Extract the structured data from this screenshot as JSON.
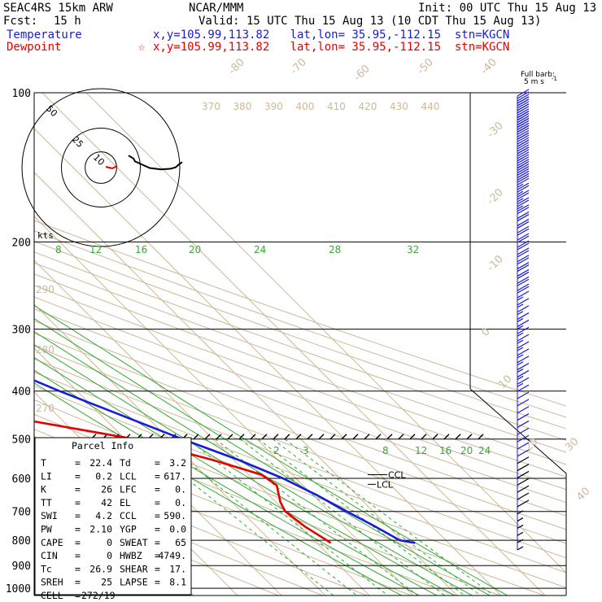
{
  "header": {
    "model": "SEAC4RS 15km ARW",
    "org": "NCAR/MMM",
    "init": "Init: 00 UTC Thu 15 Aug 13",
    "fcst_label": "Fcst:",
    "fcst_value": "15 h",
    "valid": "Valid: 15 UTC Thu 15 Aug 13 (10 CDT Thu 15 Aug 13)",
    "temp_label": "Temperature",
    "temp_info": "x,y=105.99,113.82   lat,lon= 35.95,-112.15  stn=KGCN",
    "dew_label": "Dewpoint",
    "dew_info": "x,y=105.99,113.82   lat,lon= 35.95,-112.15  stn=KGCN",
    "dew_marker": "☆",
    "temp_color": "#1a1adc",
    "dew_color": "#e60000"
  },
  "barb_label_1": "Full barb:",
  "barb_label_2": "5 m s",
  "barb_label_sup": "-1",
  "hodo": {
    "rings": [
      {
        "r": 10,
        "label": "10"
      },
      {
        "r": 25,
        "label": "25"
      },
      {
        "r": 50,
        "label": "50"
      }
    ],
    "units": "kts",
    "red_path": [
      [
        0,
        0
      ],
      [
        -3,
        1.5
      ],
      [
        -7,
        0.5
      ]
    ],
    "black_path": [
      [
        2,
        -8
      ],
      [
        5,
        -12
      ],
      [
        6,
        -16
      ],
      [
        10,
        -20
      ],
      [
        15,
        -25
      ],
      [
        22,
        -27
      ],
      [
        28,
        -26
      ],
      [
        31,
        -24
      ],
      [
        33,
        -20
      ],
      [
        35,
        -17
      ]
    ]
  },
  "chart_data": {
    "type": "line",
    "title": "",
    "xlabel": "",
    "ylabel": "",
    "y_ticks": [
      100,
      200,
      300,
      400,
      500,
      600,
      700,
      800,
      900,
      1000
    ],
    "isotherm_labels": [
      "-80",
      "-70",
      "-60",
      "-50",
      "-40",
      "-30",
      "-20",
      "-10",
      "0",
      "10",
      "20",
      "30",
      "40"
    ],
    "theta_labels": [
      "370",
      "380",
      "390",
      "400",
      "410",
      "420",
      "430",
      "440"
    ],
    "theta_low_labels": [
      "290",
      "280",
      "270"
    ],
    "mixing_ratio_labels_upper": [
      "8",
      "12",
      "16",
      "20",
      "24",
      "28",
      "32"
    ],
    "mixing_ratio_labels_lower": [
      "2",
      "3",
      "8",
      "12",
      "16",
      "20",
      "24"
    ],
    "ccl_label": "CCL",
    "lcl_label": "LCL",
    "series": [
      {
        "name": "Temperature",
        "color": "#1a1adc",
        "points": [
          [
            100,
            -63
          ],
          [
            110,
            -66
          ],
          [
            130,
            -68
          ],
          [
            150,
            -65
          ],
          [
            200,
            -57
          ],
          [
            250,
            -50
          ],
          [
            300,
            -42
          ],
          [
            350,
            -33
          ],
          [
            400,
            -24
          ],
          [
            450,
            -15
          ],
          [
            500,
            -7
          ],
          [
            550,
            1
          ],
          [
            600,
            7
          ],
          [
            650,
            11
          ],
          [
            700,
            14
          ],
          [
            750,
            17
          ],
          [
            800,
            19.5
          ],
          [
            810,
            22.4
          ]
        ]
      },
      {
        "name": "Dewpoint",
        "color": "#e60000",
        "points": [
          [
            100,
            -93
          ],
          [
            150,
            -101
          ],
          [
            200,
            -108
          ],
          [
            250,
            -104
          ],
          [
            300,
            -91
          ],
          [
            330,
            -85
          ],
          [
            350,
            -82
          ],
          [
            380,
            -92
          ],
          [
            400,
            -78
          ],
          [
            450,
            -42
          ],
          [
            500,
            -18
          ],
          [
            550,
            -5
          ],
          [
            590,
            3
          ],
          [
            620,
            4
          ],
          [
            670,
            1
          ],
          [
            700,
            0
          ],
          [
            750,
            1
          ],
          [
            790,
            2.5
          ],
          [
            810,
            3.2
          ]
        ]
      }
    ],
    "wind_barbs": [
      "50",
      "45",
      "45",
      "45",
      "40",
      "40",
      "40",
      "40",
      "35",
      "35",
      "30",
      "30",
      "25",
      "25",
      "25",
      "25",
      "20",
      "20",
      "20",
      "20",
      "20",
      "20",
      "20",
      "20",
      "20",
      "20",
      "20",
      "20",
      "15",
      "15",
      "15",
      "15",
      "15",
      "15",
      "15",
      "15",
      "15",
      "15",
      "15",
      "15",
      "15",
      "10",
      "10",
      "10",
      "10",
      "10",
      "10",
      "10",
      "10",
      "10",
      "10",
      "10",
      "10",
      "10",
      "10",
      "10",
      "10",
      "10",
      "5",
      "5",
      "5",
      "5",
      "5",
      "5"
    ]
  },
  "parcel": {
    "title": "Parcel Info",
    "rows": [
      [
        "T",
        "22.4",
        "Td",
        "3.2"
      ],
      [
        "LI",
        "0.2",
        "LCL",
        "617."
      ],
      [
        "K",
        "26",
        "LFC",
        "0."
      ],
      [
        "TT",
        "42",
        "EL",
        "0."
      ],
      [
        "SWI",
        "4.2",
        "CCL",
        "590."
      ],
      [
        "PW",
        "2.10",
        "YGP",
        "0.0"
      ],
      [
        "CAPE",
        "0",
        "SWEAT",
        "65"
      ],
      [
        "CIN",
        "0",
        "HWBZ",
        "4749."
      ],
      [
        "Tc",
        "26.9",
        "SHEAR",
        "17."
      ],
      [
        "SREH",
        "25",
        "LAPSE",
        "8.1"
      ]
    ],
    "cell_label": "CELL",
    "cell_value": "272/19"
  }
}
